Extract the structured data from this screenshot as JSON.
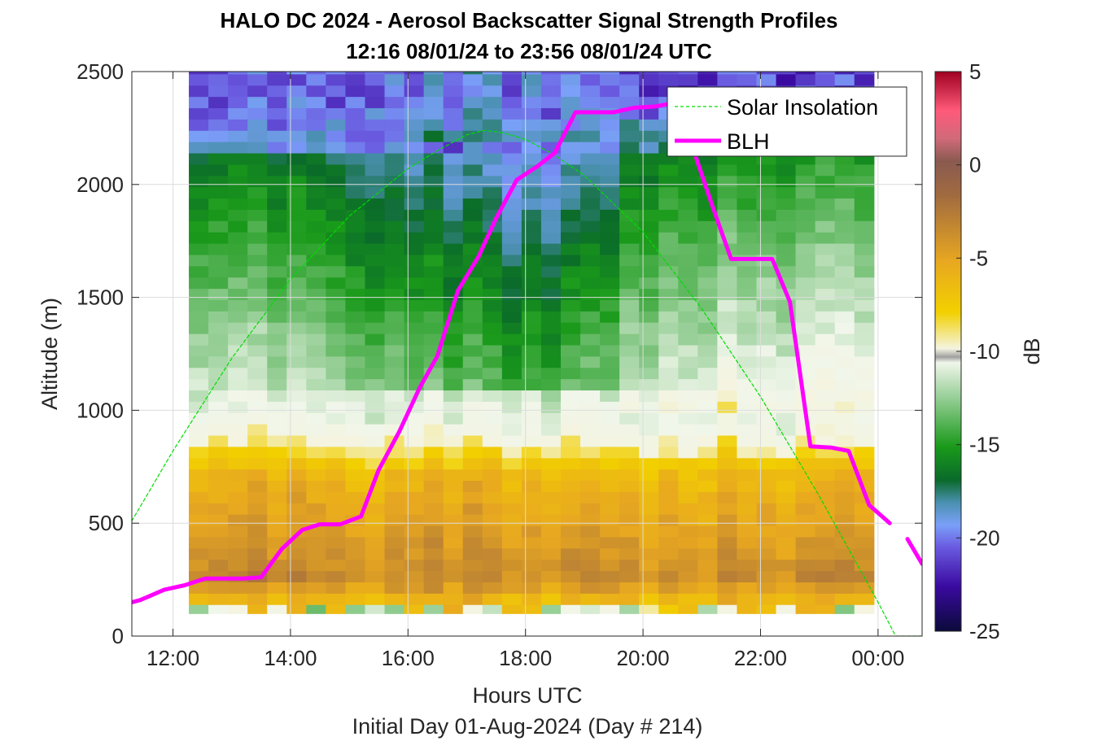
{
  "title": "HALO DC 2024 - Aerosol Backscatter Signal Strength Profiles",
  "subtitle": "12:16 08/01/24 to 23:56 08/01/24  UTC",
  "chart_data": {
    "type": "heatmap",
    "xlabel": "Hours UTC",
    "xlabel2": "Initial Day 01-Aug-2024 (Day # 214)",
    "ylabel": "Altitude (m)",
    "xlim": [
      11.3,
      24.75
    ],
    "ylim": [
      0,
      2500
    ],
    "x_ticks": [
      {
        "value": 12,
        "label": "12:00"
      },
      {
        "value": 14,
        "label": "14:00"
      },
      {
        "value": 16,
        "label": "16:00"
      },
      {
        "value": 18,
        "label": "18:00"
      },
      {
        "value": 20,
        "label": "20:00"
      },
      {
        "value": 22,
        "label": "22:00"
      },
      {
        "value": 24,
        "label": "00:00"
      }
    ],
    "y_ticks": [
      {
        "value": 0,
        "label": "0"
      },
      {
        "value": 500,
        "label": "500"
      },
      {
        "value": 1000,
        "label": "1000"
      },
      {
        "value": 1500,
        "label": "1500"
      },
      {
        "value": 2000,
        "label": "2000"
      },
      {
        "value": 2500,
        "label": "2500"
      }
    ],
    "colorbar": {
      "label": "dB",
      "range": [
        -25,
        5
      ],
      "ticks": [
        {
          "value": 5,
          "label": "5"
        },
        {
          "value": 0,
          "label": "0"
        },
        {
          "value": -5,
          "label": "-5"
        },
        {
          "value": -10,
          "label": "-10"
        },
        {
          "value": -15,
          "label": "-15"
        },
        {
          "value": -20,
          "label": "-20"
        },
        {
          "value": -25,
          "label": "-25"
        }
      ]
    },
    "heatmap_extent": {
      "x": [
        12.27,
        23.93
      ],
      "y": [
        100,
        2500
      ]
    },
    "approx_profile_db": [
      {
        "alt": 120,
        "db": -7.5
      },
      {
        "alt": 250,
        "db": -3.5
      },
      {
        "alt": 500,
        "db": -5.0
      },
      {
        "alt": 700,
        "db": -6.0
      },
      {
        "alt": 830,
        "db": -8.5
      },
      {
        "alt": 950,
        "db": -10.5
      },
      {
        "alt": 1200,
        "db": -12.0
      },
      {
        "alt": 1500,
        "db": -13.5
      },
      {
        "alt": 1800,
        "db": -15.0
      },
      {
        "alt": 2100,
        "db": -16.5
      },
      {
        "alt": 2400,
        "db": -18.5
      }
    ],
    "series": [
      {
        "name": "Solar Insolation",
        "color": "#00dd00",
        "style": "dashed",
        "x": [
          11.3,
          12.0,
          13.0,
          14.0,
          15.0,
          16.0,
          16.5,
          17.0,
          17.3,
          17.6,
          18.0,
          18.5,
          19.0,
          20.0,
          21.0,
          22.0,
          23.0,
          24.0,
          24.3,
          24.75
        ],
        "y": [
          510,
          820,
          1230,
          1580,
          1860,
          2070,
          2150,
          2220,
          2240,
          2230,
          2200,
          2130,
          2040,
          1790,
          1450,
          1060,
          620,
          150,
          0,
          0
        ]
      },
      {
        "name": "BLH",
        "color": "#ff00ff",
        "style": "solid",
        "x": [
          11.3,
          11.45,
          11.85,
          12.2,
          12.55,
          12.85,
          13.2,
          13.5,
          13.85,
          14.2,
          14.5,
          14.85,
          15.2,
          15.5,
          15.85,
          16.2,
          16.5,
          16.85,
          17.2,
          17.5,
          17.85,
          18.2,
          18.5,
          18.85,
          19.2,
          19.5,
          19.85,
          20.2,
          20.5,
          20.85,
          21.2,
          21.5,
          21.85,
          22.2,
          22.5,
          22.85,
          23.2,
          23.5,
          23.85,
          24.2
        ],
        "y": [
          150,
          160,
          205,
          225,
          255,
          255,
          255,
          260,
          385,
          470,
          495,
          495,
          530,
          735,
          905,
          1100,
          1240,
          1530,
          1680,
          1850,
          2020,
          2080,
          2140,
          2320,
          2320,
          2320,
          2340,
          2345,
          2360,
          2160,
          1890,
          1670,
          1670,
          1670,
          1480,
          840,
          835,
          820,
          580,
          500
        ]
      },
      {
        "name": "",
        "color": "#ff00ff",
        "style": "solid",
        "x": [
          24.5,
          24.75
        ],
        "y": [
          430,
          320
        ]
      }
    ],
    "legend": {
      "placement": "top-right",
      "entries": [
        "Solar Insolation",
        "BLH"
      ]
    },
    "grid": true
  }
}
